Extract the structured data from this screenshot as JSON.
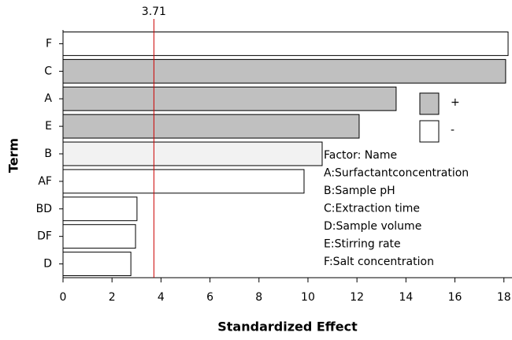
{
  "chart_data": {
    "type": "bar",
    "orientation": "horizontal",
    "categories": [
      "F",
      "C",
      "A",
      "E",
      "B",
      "AF",
      "BD",
      "DF",
      "D"
    ],
    "values": [
      18.17,
      18.07,
      13.6,
      12.09,
      10.58,
      9.84,
      3.02,
      2.96,
      2.77
    ],
    "colors": [
      "#ffffff",
      "#c0c0c0",
      "#c0c0c0",
      "#c0c0c0",
      "#f2f2f2",
      "#ffffff",
      "#ffffff",
      "#ffffff",
      "#ffffff"
    ],
    "xlabel": "Standardized Effect",
    "ylabel": "Term",
    "xlim": [
      0,
      18.33
    ],
    "xticks": [
      0,
      2,
      4,
      6,
      8,
      10,
      12,
      14,
      16,
      18
    ],
    "reference_line": 3.71,
    "reference_color": "#cc0000",
    "legend": [
      {
        "label": "+",
        "color": "#c0c0c0"
      },
      {
        "label": "-",
        "color": "#ffffff"
      }
    ],
    "annotation": [
      "Factor:   Name",
      "A:Surfactantconcentration",
      "B:Sample pH",
      "C:Extraction time",
      "D:Sample volume",
      "E:Stirring rate",
      "F:Salt concentration"
    ]
  }
}
